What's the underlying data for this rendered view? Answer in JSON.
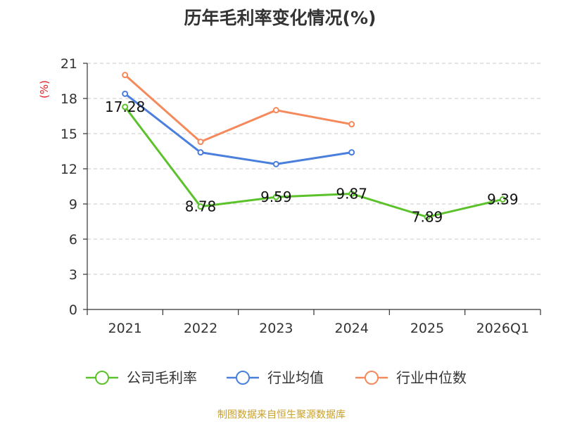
{
  "chart_data": {
    "type": "line",
    "title": "历年毛利率变化情况(%)",
    "ylabel": "(%)",
    "categories": [
      "2021",
      "2022",
      "2023",
      "2024",
      "2025",
      "2026Q1"
    ],
    "ylim": [
      0,
      21
    ],
    "yticks": [
      0,
      3,
      6,
      9,
      12,
      15,
      18,
      21
    ],
    "grid": true,
    "legend_position": "bottom",
    "series": [
      {
        "name": "公司毛利率",
        "color": "#5cc22c",
        "values": [
          17.28,
          8.78,
          9.59,
          9.87,
          7.89,
          9.39
        ],
        "labels": [
          "17.28",
          "8.78",
          "9.59",
          "9.87",
          "7.89",
          "9.39"
        ]
      },
      {
        "name": "行业均值",
        "color": "#4a7fdc",
        "values": [
          18.4,
          13.4,
          12.4,
          13.4,
          null,
          null
        ],
        "labels": []
      },
      {
        "name": "行业中位数",
        "color": "#f5895b",
        "values": [
          20.0,
          14.3,
          17.0,
          15.8,
          null,
          null
        ],
        "labels": []
      }
    ]
  },
  "source": "制图数据来自恒生聚源数据库"
}
